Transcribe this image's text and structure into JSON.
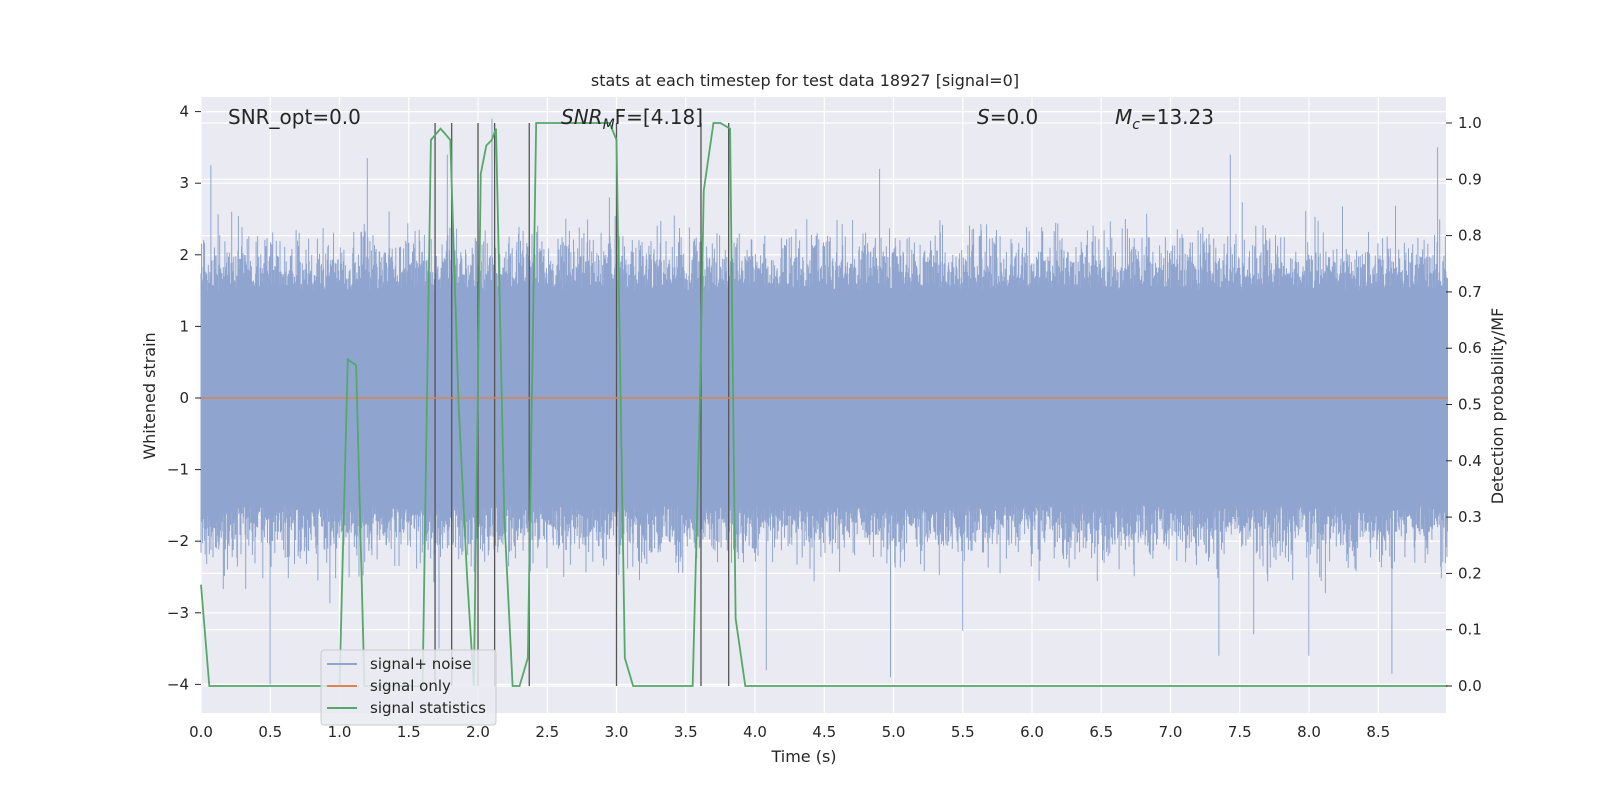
{
  "chart_data": {
    "type": "line",
    "title": "stats at each timestep for test data 18927 [signal=0]",
    "xlabel": "Time (s)",
    "ylabel": "Whitened strain",
    "y2label": "Detection probability/MF",
    "xlim": [
      0,
      9.0
    ],
    "ylim": [
      -4.3,
      4.2
    ],
    "y2lim": [
      -0.05,
      1.04
    ],
    "grid": true,
    "x_ticks": [
      0.0,
      0.5,
      1.0,
      1.5,
      2.0,
      2.5,
      3.0,
      3.5,
      4.0,
      4.5,
      5.0,
      5.5,
      6.0,
      6.5,
      7.0,
      7.5,
      8.0,
      8.5
    ],
    "x_tick_labels": [
      "0.0",
      "0.5",
      "1.0",
      "1.5",
      "2.0",
      "2.5",
      "3.0",
      "3.5",
      "4.0",
      "4.5",
      "5.0",
      "5.5",
      "6.0",
      "6.5",
      "7.0",
      "7.5",
      "8.0",
      "8.5"
    ],
    "y_ticks": [
      -4,
      -3,
      -2,
      -1,
      0,
      1,
      2,
      3,
      4
    ],
    "y_tick_labels": [
      "−4",
      "−3",
      "−2",
      "−1",
      "0",
      "1",
      "2",
      "3",
      "4"
    ],
    "y2_ticks": [
      0.0,
      0.1,
      0.2,
      0.3,
      0.4,
      0.5,
      0.6,
      0.7,
      0.8,
      0.9,
      1.0
    ],
    "y2_tick_labels": [
      "0.0",
      "0.1",
      "0.2",
      "0.3",
      "0.4",
      "0.5",
      "0.6",
      "0.7",
      "0.8",
      "0.9",
      "1.0"
    ],
    "legend_position": "lower-left",
    "annotations": [
      {
        "key": "snr_opt",
        "text": "SNR_opt=0.0"
      },
      {
        "key": "snr_mf",
        "text_main": "SNR",
        "text_sub": "M",
        "text_rest": "F=[4.18]"
      },
      {
        "key": "s",
        "text_main": "S",
        "text_rest": "=0.0"
      },
      {
        "key": "mc",
        "text_main": "M",
        "text_sub": "c",
        "text_rest": "=13.23"
      }
    ],
    "series": [
      {
        "name": "signal+ noise",
        "color": "#8fa5cf",
        "axis": "left",
        "kind": "noise",
        "amplitude": 1.5,
        "spikes": [
          {
            "x": 0.07,
            "y": 3.25
          },
          {
            "x": 0.22,
            "y": 2.6
          },
          {
            "x": 0.5,
            "y": -4.0
          },
          {
            "x": 1.2,
            "y": 3.35
          },
          {
            "x": 1.72,
            "y": -3.5
          },
          {
            "x": 1.78,
            "y": 3.4
          },
          {
            "x": 2.1,
            "y": 3.9
          },
          {
            "x": 2.62,
            "y": -2.5
          },
          {
            "x": 2.95,
            "y": 2.8
          },
          {
            "x": 3.83,
            "y": -2.3
          },
          {
            "x": 4.08,
            "y": -3.8
          },
          {
            "x": 4.9,
            "y": 3.2
          },
          {
            "x": 4.98,
            "y": -3.9
          },
          {
            "x": 5.5,
            "y": -3.25
          },
          {
            "x": 7.35,
            "y": -3.6
          },
          {
            "x": 7.43,
            "y": 3.4
          },
          {
            "x": 7.6,
            "y": -3.3
          },
          {
            "x": 8.0,
            "y": -3.6
          },
          {
            "x": 8.6,
            "y": -3.85
          },
          {
            "x": 8.93,
            "y": 3.5
          }
        ]
      },
      {
        "name": "signal only",
        "color": "#dd8452",
        "axis": "left",
        "x": [
          0,
          9.0
        ],
        "y": [
          0,
          0
        ]
      },
      {
        "name": "signal statistics",
        "color": "#55a868",
        "axis": "right",
        "x": [
          0.0,
          0.06,
          0.12,
          1.0,
          1.06,
          1.12,
          1.18,
          1.24,
          1.6,
          1.66,
          1.73,
          1.8,
          1.86,
          1.92,
          1.97,
          2.02,
          2.06,
          2.1,
          2.13,
          2.19,
          2.25,
          2.3,
          2.36,
          2.42,
          2.95,
          3.0,
          3.06,
          3.12,
          3.55,
          3.6,
          3.63,
          3.7,
          3.75,
          3.82,
          3.86,
          3.93,
          3.99,
          9.0
        ],
        "y": [
          0.18,
          0.0,
          0.0,
          0.0,
          0.58,
          0.57,
          0.0,
          0.0,
          0.0,
          0.97,
          0.99,
          0.97,
          0.5,
          0.2,
          0.0,
          0.91,
          0.96,
          0.97,
          0.99,
          0.3,
          0.0,
          0.0,
          0.05,
          1.0,
          1.0,
          0.97,
          0.05,
          0.0,
          0.0,
          0.48,
          0.88,
          1.0,
          1.0,
          0.99,
          0.12,
          0.0,
          0.0,
          0.0
        ]
      }
    ],
    "vertical_lines": [
      1.69,
      1.81,
      2.0,
      2.12,
      2.37,
      3.0,
      3.61,
      3.81
    ]
  }
}
